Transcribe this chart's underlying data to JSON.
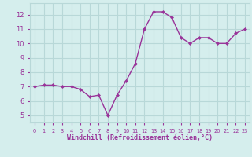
{
  "x": [
    0,
    1,
    2,
    3,
    4,
    5,
    6,
    7,
    8,
    9,
    10,
    11,
    12,
    13,
    14,
    15,
    16,
    17,
    18,
    19,
    20,
    21,
    22,
    23
  ],
  "y": [
    7.0,
    7.1,
    7.1,
    7.0,
    7.0,
    6.8,
    6.3,
    6.4,
    5.0,
    6.4,
    7.4,
    8.6,
    11.0,
    12.2,
    12.2,
    11.8,
    10.4,
    10.0,
    10.4,
    10.4,
    10.0,
    10.0,
    10.7,
    11.0
  ],
  "line_color": "#993399",
  "marker_color": "#993399",
  "bg_color": "#d5eeed",
  "grid_color": "#b8d8d8",
  "xlabel": "Windchill (Refroidissement éolien,°C)",
  "xlabel_color": "#993399",
  "tick_color": "#993399",
  "ylim": [
    4.5,
    12.8
  ],
  "xlim": [
    -0.5,
    23.5
  ],
  "yticks": [
    5,
    6,
    7,
    8,
    9,
    10,
    11,
    12
  ],
  "xtick_labels": [
    "0",
    "1",
    "2",
    "3",
    "4",
    "5",
    "6",
    "7",
    "8",
    "9",
    "10",
    "11",
    "12",
    "13",
    "14",
    "15",
    "16",
    "17",
    "18",
    "19",
    "20",
    "21",
    "22",
    "23"
  ]
}
